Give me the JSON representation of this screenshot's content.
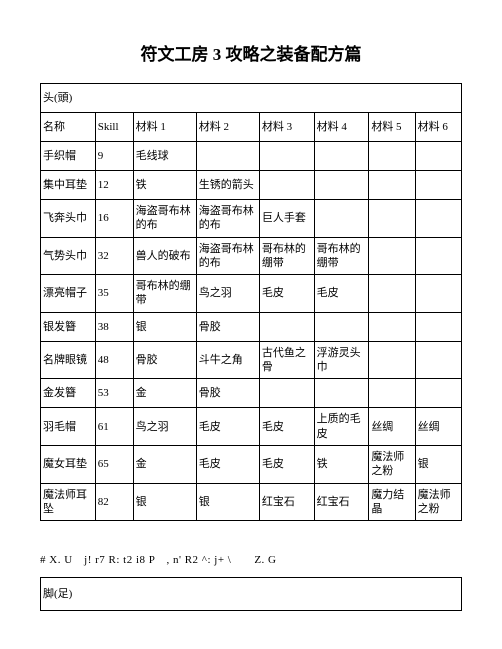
{
  "title": "符文工房 3 攻略之装备配方篇",
  "section_head_1": "头(頭)",
  "section_head_2": "脚(足)",
  "columns": [
    "名称",
    "Skill",
    "材料 1",
    "材料 2",
    "材料 3",
    "材料 4",
    "材料 5",
    "材料 6"
  ],
  "rows": [
    [
      "手织帽",
      "9",
      "毛线球",
      "",
      "",
      "",
      "",
      ""
    ],
    [
      "集中耳垫",
      "12",
      "铁",
      "生锈的箭头",
      "",
      "",
      "",
      ""
    ],
    [
      "飞奔头巾",
      "16",
      "海盗哥布林的布",
      "海盗哥布林的布",
      "巨人手套",
      "",
      "",
      ""
    ],
    [
      "气势头巾",
      "32",
      "兽人的破布",
      "海盗哥布林的布",
      "哥布林的绷带",
      "哥布林的绷带",
      "",
      ""
    ],
    [
      "漂亮帽子",
      "35",
      "哥布林的绷带",
      "鸟之羽",
      "毛皮",
      "毛皮",
      "",
      ""
    ],
    [
      "银发簪",
      "38",
      "银",
      "骨胶",
      "",
      "",
      "",
      ""
    ],
    [
      "名牌眼镜",
      "48",
      "骨胶",
      "斗牛之角",
      "古代鱼之骨",
      "浮游灵头巾",
      "",
      ""
    ],
    [
      "金发簪",
      "53",
      "金",
      "骨胶",
      "",
      "",
      "",
      ""
    ],
    [
      "羽毛帽",
      "61",
      "鸟之羽",
      "毛皮",
      "毛皮",
      "上质的毛皮",
      "丝绸",
      "丝绸"
    ],
    [
      "魔女耳垫",
      "65",
      "金",
      "毛皮",
      "毛皮",
      "铁",
      "魔法师之粉",
      "银"
    ],
    [
      "魔法师耳坠",
      "82",
      "银",
      "银",
      "红宝石",
      "红宝石",
      "魔力结晶",
      "魔法师之粉"
    ]
  ],
  "misc_line": "# X. U　j! r7 R: t2 i8 P　, n' R2 ^: j+ \\　　Z. G"
}
